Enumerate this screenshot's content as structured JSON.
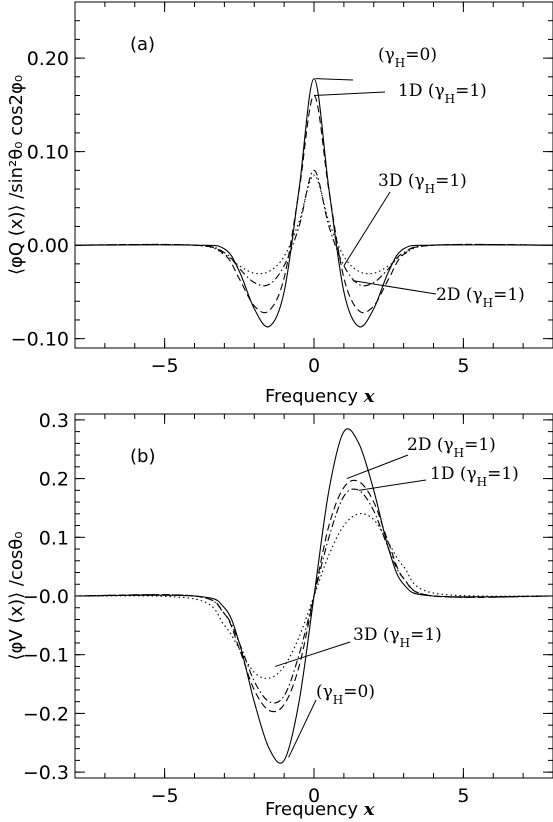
{
  "chart_data": [
    {
      "type": "line",
      "panel_label": "(a)",
      "xlabel": "Frequency x",
      "ylabel": "⟨φQ (x)⟩ /sin²θ₀ cos2φ₀",
      "xlim": [
        -8,
        8
      ],
      "ylim": [
        -0.11,
        0.26
      ],
      "x_ticks": [
        -5,
        0,
        5
      ],
      "x_tick_labels": [
        "−5",
        "0",
        "5"
      ],
      "y_ticks": [
        -0.1,
        0.0,
        0.1,
        0.2
      ],
      "y_tick_labels": [
        "−0.10",
        "0.00",
        "0.10",
        "0.20"
      ],
      "grid": false,
      "series": [
        {
          "name": "(γH=0)",
          "dash": "solid",
          "x": [
            -8,
            -4,
            -3,
            -2.5,
            -2,
            -1.5,
            -1,
            -0.5,
            0,
            0.5,
            1,
            1.5,
            2,
            2.5,
            3,
            4,
            8
          ],
          "y": [
            0,
            0,
            -0.004,
            -0.028,
            -0.068,
            -0.087,
            -0.05,
            0.06,
            0.178,
            0.06,
            -0.05,
            -0.087,
            -0.068,
            -0.028,
            -0.004,
            0,
            0
          ]
        },
        {
          "name": "1D (γH=1)",
          "dash": "dashed",
          "x": [
            -8,
            -4,
            -3,
            -2.5,
            -2,
            -1.5,
            -1,
            -0.5,
            0,
            0.5,
            1,
            1.5,
            2,
            2.5,
            3,
            4,
            8
          ],
          "y": [
            0,
            0,
            -0.01,
            -0.036,
            -0.065,
            -0.07,
            -0.035,
            0.058,
            0.16,
            0.058,
            -0.035,
            -0.07,
            -0.065,
            -0.036,
            -0.01,
            0,
            0
          ]
        },
        {
          "name": "2D (γH=1)",
          "dash": "dashdot",
          "x": [
            -8,
            -4,
            -3,
            -2.5,
            -2,
            -1.5,
            -1,
            -0.5,
            0,
            0.5,
            1,
            1.5,
            2,
            2.5,
            3,
            4,
            8
          ],
          "y": [
            0,
            0,
            -0.008,
            -0.025,
            -0.04,
            -0.042,
            -0.022,
            0.02,
            0.08,
            0.02,
            -0.022,
            -0.042,
            -0.04,
            -0.025,
            -0.008,
            0,
            0
          ]
        },
        {
          "name": "3D (γH=1)",
          "dash": "dotted",
          "x": [
            -8,
            -4,
            -3,
            -2.5,
            -2,
            -1.5,
            -1,
            -0.5,
            0,
            0.5,
            1,
            1.5,
            2,
            2.5,
            3,
            4,
            8
          ],
          "y": [
            0,
            0,
            -0.01,
            -0.022,
            -0.03,
            -0.028,
            -0.012,
            0.025,
            0.075,
            0.025,
            -0.012,
            -0.028,
            -0.03,
            -0.022,
            -0.01,
            0,
            0
          ]
        }
      ],
      "annotations": [
        {
          "text_main": "(γ",
          "text_sub": "H",
          "text_end": "=0)",
          "ax": 0.05,
          "ay": 0.178
        },
        {
          "text_main": "1D  (γ",
          "text_sub": "H",
          "text_end": "=1)",
          "ax": 0.0,
          "ay": 0.16
        },
        {
          "text_main": "3D  (γ",
          "text_sub": "H",
          "text_end": "=1)",
          "ax": 1.0,
          "ay": -0.022
        },
        {
          "text_main": "2D  (γ",
          "text_sub": "H",
          "text_end": "=1)",
          "ax": 1.3,
          "ay": -0.038
        }
      ]
    },
    {
      "type": "line",
      "panel_label": "(b)",
      "xlabel": "Frequency x",
      "ylabel": "⟨φV (x)⟩ /cosθ₀",
      "xlim": [
        -8,
        8
      ],
      "ylim": [
        -0.31,
        0.31
      ],
      "x_ticks": [
        -5,
        0,
        5
      ],
      "x_tick_labels": [
        "−5",
        "0",
        "5"
      ],
      "y_ticks": [
        -0.3,
        -0.2,
        -0.1,
        0.0,
        0.1,
        0.2,
        0.3
      ],
      "y_tick_labels": [
        "−0.3",
        "−0.2",
        "−0.1",
        "−0.0",
        "0.1",
        "0.2",
        "0.3"
      ],
      "grid": false,
      "series": [
        {
          "name": "(γH=0)",
          "dash": "solid",
          "x": [
            -8,
            -4,
            -3,
            -2.5,
            -2,
            -1.5,
            -1,
            -0.5,
            0,
            0.5,
            1,
            1.5,
            2,
            2.5,
            3,
            4,
            8
          ],
          "y": [
            0,
            0,
            -0.02,
            -0.08,
            -0.18,
            -0.26,
            -0.28,
            -0.18,
            0,
            0.18,
            0.28,
            0.26,
            0.18,
            0.08,
            0.02,
            0,
            0
          ]
        },
        {
          "name": "1D (γH=1)",
          "dash": "dashed",
          "x": [
            -8,
            -4,
            -3,
            -2.5,
            -2,
            -1.5,
            -1,
            -0.5,
            0,
            0.5,
            1,
            1.5,
            2,
            2.5,
            3,
            4,
            8
          ],
          "y": [
            0,
            0,
            -0.03,
            -0.09,
            -0.16,
            -0.195,
            -0.185,
            -0.12,
            0,
            0.12,
            0.185,
            0.195,
            0.16,
            0.09,
            0.03,
            0,
            0
          ]
        },
        {
          "name": "2D (γH=1)",
          "dash": "dashdot",
          "x": [
            -8,
            -4,
            -3,
            -2.5,
            -2,
            -1.5,
            -1,
            -0.5,
            0,
            0.5,
            1,
            1.5,
            2,
            2.5,
            3,
            4,
            8
          ],
          "y": [
            0,
            0,
            -0.03,
            -0.08,
            -0.145,
            -0.18,
            -0.17,
            -0.1,
            0,
            0.1,
            0.17,
            0.18,
            0.145,
            0.08,
            0.03,
            0,
            0
          ]
        },
        {
          "name": "3D (γH=1)",
          "dash": "dotted",
          "x": [
            -8,
            -4,
            -3,
            -2.5,
            -2,
            -1.5,
            -1,
            -0.5,
            0,
            0.5,
            1,
            1.5,
            2,
            2.5,
            3,
            4,
            8
          ],
          "y": [
            0,
            -0.005,
            -0.05,
            -0.09,
            -0.13,
            -0.14,
            -0.12,
            -0.07,
            0,
            0.07,
            0.12,
            0.14,
            0.13,
            0.09,
            0.05,
            0.005,
            0
          ]
        }
      ],
      "annotations": [
        {
          "text_main": "2D  (γ",
          "text_sub": "H",
          "text_end": "=1)",
          "ax": 1.1,
          "ay": 0.2
        },
        {
          "text_main": "1D  (γ",
          "text_sub": "H",
          "text_end": "=1)",
          "ax": 1.5,
          "ay": 0.18
        },
        {
          "text_main": "3D  (γ",
          "text_sub": "H",
          "text_end": "=1)",
          "ax": -1.3,
          "ay": -0.12
        },
        {
          "text_main": "(γ",
          "text_sub": "H",
          "text_end": "=0)",
          "ax": -0.85,
          "ay": -0.275
        }
      ]
    }
  ]
}
